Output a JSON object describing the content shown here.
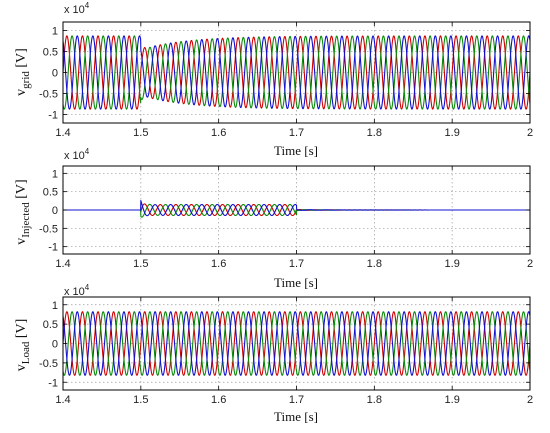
{
  "chart_data": [
    {
      "type": "line",
      "id": "grid",
      "ylabel_main": "v",
      "ylabel_sub": "grid",
      "ylabel_unit": " [V]",
      "xlabel": "Time [s]",
      "exponent_label": "x 10",
      "exponent_power": "4",
      "xlim": [
        1.4,
        2.0
      ],
      "ylim": [
        -1.2,
        1.2
      ],
      "xticks": [
        "1.4",
        "1.5",
        "1.6",
        "1.7",
        "1.8",
        "1.9",
        "2"
      ],
      "yticks": [
        "1",
        "0.5",
        "0",
        "-0.5",
        "-1"
      ],
      "grid": true,
      "series_colors": [
        "#d00000",
        "#0a8a0a",
        "#1010d0"
      ],
      "waveform": {
        "frequency_hz": 50,
        "amplitude_before": 0.87,
        "amplitude_sag": 0.55,
        "amplitude_after": 0.87,
        "sag_start_s": 1.5,
        "sag_recovery_s": 1.7
      }
    },
    {
      "type": "line",
      "id": "injected",
      "ylabel_main": "v",
      "ylabel_sub": "Injected",
      "ylabel_unit": " [V]",
      "xlabel": "Time [s]",
      "exponent_label": "x 10",
      "exponent_power": "4",
      "xlim": [
        1.4,
        2.0
      ],
      "ylim": [
        -1.2,
        1.2
      ],
      "xticks": [
        "1.4",
        "1.5",
        "1.6",
        "1.7",
        "1.8",
        "1.9",
        "2"
      ],
      "yticks": [
        "1",
        "0.5",
        "0",
        "-0.5",
        "-1"
      ],
      "grid": true,
      "series_colors": [
        "#d00000",
        "#0a8a0a",
        "#1010d0"
      ],
      "waveform": {
        "frequency_hz": 50,
        "transient_peak": 0.4,
        "steady_amplitude": 0.15,
        "start_s": 1.5,
        "end_s": 1.7
      }
    },
    {
      "type": "line",
      "id": "load",
      "ylabel_main": "v",
      "ylabel_sub": "Load",
      "ylabel_unit": " [V]",
      "xlabel": "Time [s]",
      "exponent_label": "x 10",
      "exponent_power": "4",
      "xlim": [
        1.4,
        2.0
      ],
      "ylim": [
        -1.2,
        1.2
      ],
      "xticks": [
        "1.4",
        "1.5",
        "1.6",
        "1.7",
        "1.8",
        "1.9",
        "2"
      ],
      "yticks": [
        "1",
        "0.5",
        "0",
        "-0.5",
        "-1"
      ],
      "grid": true,
      "series_colors": [
        "#d00000",
        "#0a8a0a",
        "#1010d0"
      ],
      "waveform": {
        "frequency_hz": 50,
        "amplitude": 0.82
      }
    }
  ]
}
